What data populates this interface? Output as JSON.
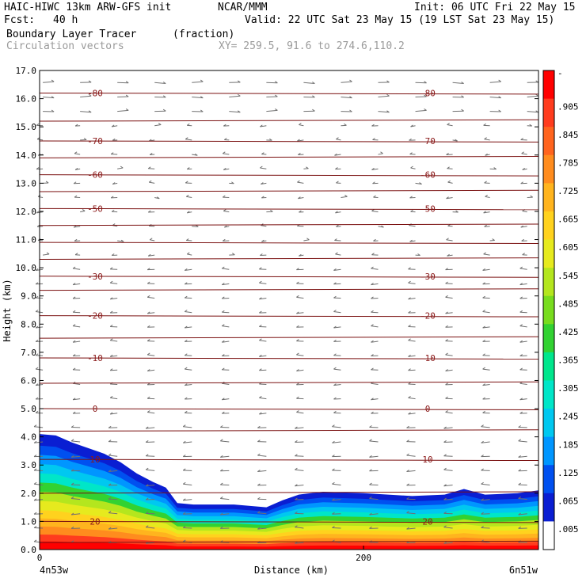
{
  "header": {
    "model": "HAIC-HIWC 13km ARW-GFS init",
    "org": "NCAR/MMM",
    "init": "Init: 06 UTC Fri 22 May 15",
    "fcst_label": "Fcst:",
    "fcst_value": "40 h",
    "valid": "Valid: 22 UTC Sat 23 May 15 (19 LST Sat 23 May 15)",
    "field": "Boundary Layer Tracer",
    "units": "(fraction)",
    "field2": "Circulation vectors",
    "xy": "XY= 259.5, 91.6 to 274.6,110.2"
  },
  "chart_data": {
    "type": "heatmap",
    "ylabel": "Height (km)",
    "xlabel": "Distance (km)",
    "ylim": [
      0,
      17
    ],
    "xlim": [
      0,
      308
    ],
    "y_ticks": [
      "0.0",
      "1.0",
      "2.0",
      "3.0",
      "4.0",
      "5.0",
      "6.0",
      "7.0",
      "8.0",
      "9.0",
      "10.0",
      "11.0",
      "12.0",
      "13.0",
      "14.0",
      "15.0",
      "16.0",
      "17.0"
    ],
    "x_ticks": [
      {
        "value": 0,
        "label": "0"
      },
      {
        "value": 200,
        "label": "200"
      }
    ],
    "x_end_labels": {
      "left": "4n53w",
      "right": "6n51w"
    },
    "colorbar_labels": [
      "-",
      ".905",
      ".845",
      ".785",
      ".725",
      ".665",
      ".605",
      ".545",
      ".485",
      ".425",
      ".365",
      ".305",
      ".245",
      ".185",
      ".125",
      ".065",
      ".005"
    ],
    "colorbar_colors": [
      "#ffffff",
      "#0a1ed2",
      "#0050f0",
      "#0096ff",
      "#00c8f0",
      "#00e6c8",
      "#00e68c",
      "#32d232",
      "#78dc1e",
      "#b4e61e",
      "#e6ea1e",
      "#ffd21e",
      "#ffb41e",
      "#ff8c1e",
      "#ff641e",
      "#ff3c1e",
      "#ff0000"
    ],
    "isotherms": [
      {
        "height": 0.25,
        "label": null
      },
      {
        "height": 1.0,
        "label": "20"
      },
      {
        "height": 2.0,
        "label": null
      },
      {
        "height": 3.2,
        "label": "10"
      },
      {
        "height": 4.2,
        "label": null
      },
      {
        "height": 5.0,
        "label": "0"
      },
      {
        "height": 5.9,
        "label": null
      },
      {
        "height": 6.8,
        "label": "-10"
      },
      {
        "height": 7.5,
        "label": null
      },
      {
        "height": 8.3,
        "label": "-20"
      },
      {
        "height": 9.2,
        "label": null
      },
      {
        "height": 9.7,
        "label": "-30"
      },
      {
        "height": 10.3,
        "label": null
      },
      {
        "height": 10.9,
        "label": null
      },
      {
        "height": 11.5,
        "label": null
      },
      {
        "height": 12.1,
        "label": "-50"
      },
      {
        "height": 12.7,
        "label": null
      },
      {
        "height": 13.3,
        "label": "-60"
      },
      {
        "height": 13.9,
        "label": null
      },
      {
        "height": 14.5,
        "label": "-70"
      },
      {
        "height": 15.2,
        "label": null
      },
      {
        "height": 16.2,
        "label": "-80"
      }
    ],
    "tracer_top_km": [
      {
        "x": 0,
        "top": 4.1
      },
      {
        "x": 10,
        "top": 4.05
      },
      {
        "x": 20,
        "top": 3.8
      },
      {
        "x": 30,
        "top": 3.6
      },
      {
        "x": 40,
        "top": 3.4
      },
      {
        "x": 50,
        "top": 3.1
      },
      {
        "x": 60,
        "top": 2.7
      },
      {
        "x": 70,
        "top": 2.4
      },
      {
        "x": 78,
        "top": 2.2
      },
      {
        "x": 85,
        "top": 1.65
      },
      {
        "x": 95,
        "top": 1.6
      },
      {
        "x": 120,
        "top": 1.6
      },
      {
        "x": 140,
        "top": 1.5
      },
      {
        "x": 150,
        "top": 1.75
      },
      {
        "x": 160,
        "top": 1.95
      },
      {
        "x": 175,
        "top": 2.05
      },
      {
        "x": 200,
        "top": 2.0
      },
      {
        "x": 230,
        "top": 1.9
      },
      {
        "x": 250,
        "top": 1.95
      },
      {
        "x": 262,
        "top": 2.15
      },
      {
        "x": 275,
        "top": 1.95
      },
      {
        "x": 295,
        "top": 2.0
      },
      {
        "x": 308,
        "top": 2.1
      }
    ],
    "tracer_layers": [
      {
        "frac": 1.0,
        "color": "#0a1ed2"
      },
      {
        "frac": 0.9,
        "color": "#0050f0"
      },
      {
        "frac": 0.82,
        "color": "#0096ff"
      },
      {
        "frac": 0.74,
        "color": "#00c8f0"
      },
      {
        "frac": 0.66,
        "color": "#00e6c8"
      },
      {
        "frac": 0.58,
        "color": "#32d232"
      },
      {
        "frac": 0.5,
        "color": "#b4e61e"
      },
      {
        "frac": 0.42,
        "color": "#e6ea1e"
      },
      {
        "frac": 0.34,
        "color": "#ffd21e"
      },
      {
        "frac": 0.27,
        "color": "#ffb41e"
      },
      {
        "frac": 0.2,
        "color": "#ff8c1e"
      },
      {
        "frac": 0.13,
        "color": "#ff3c1e"
      },
      {
        "frac": 0.07,
        "color": "#ff0000"
      }
    ],
    "grid": false,
    "legend": "colorbar-right"
  }
}
